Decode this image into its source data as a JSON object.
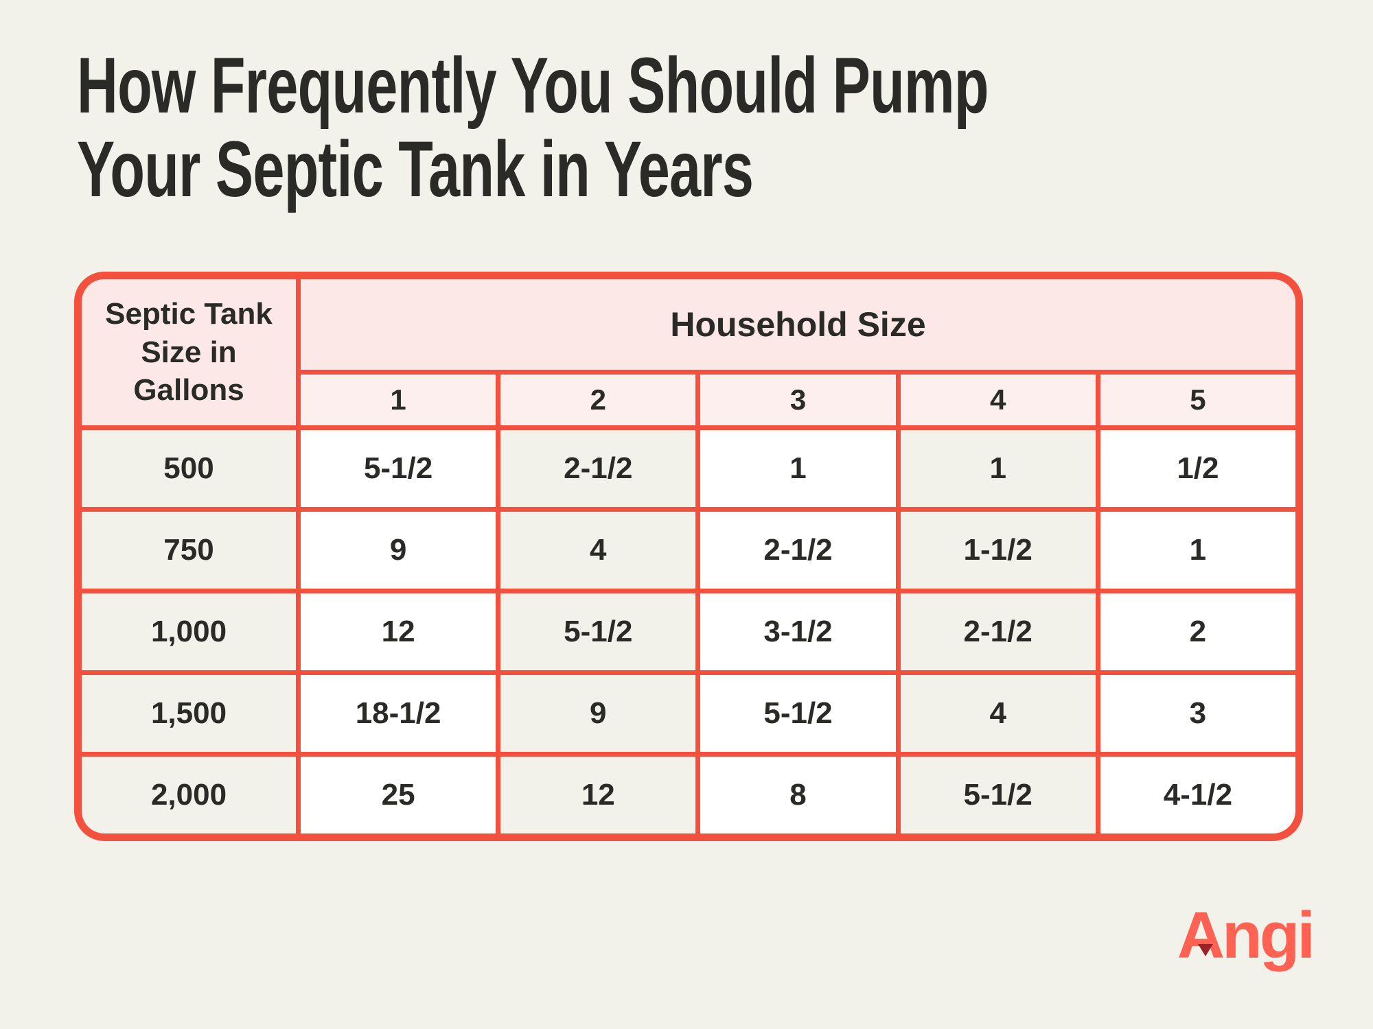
{
  "title": {
    "line1": "How Frequently You Should Pump",
    "line2": "Your Septic Tank in Years"
  },
  "footer": {
    "brand": "Angi"
  },
  "colors": {
    "page_background": "#F2F1EA",
    "table_line_red": "#F4503E",
    "header_pink": "#FCE8E6",
    "subheader_pink": "#FDEFED",
    "cell_white": "#FFFFFF",
    "cell_beige": "#F2F1EA",
    "text_dark": "#2A2A27",
    "brand_red": "#FF6153"
  },
  "chart_data": {
    "type": "table",
    "title": "How Frequently You Should Pump Your Septic Tank in Years",
    "row_header_label": "Septic Tank Size in Gallons",
    "column_group_label": "Household Size",
    "columns": [
      "1",
      "2",
      "3",
      "4",
      "5"
    ],
    "rows": [
      {
        "label": "500",
        "values": [
          "5-1/2",
          "2-1/2",
          "1",
          "1",
          "1/2"
        ]
      },
      {
        "label": "750",
        "values": [
          "9",
          "4",
          "2-1/2",
          "1-1/2",
          "1"
        ]
      },
      {
        "label": "1,000",
        "values": [
          "12",
          "5-1/2",
          "3-1/2",
          "2-1/2",
          "2"
        ]
      },
      {
        "label": "1,500",
        "values": [
          "18-1/2",
          "9",
          "5-1/2",
          "4",
          "3"
        ]
      },
      {
        "label": "2,000",
        "values": [
          "25",
          "12",
          "8",
          "5-1/2",
          "4-1/2"
        ]
      }
    ]
  }
}
